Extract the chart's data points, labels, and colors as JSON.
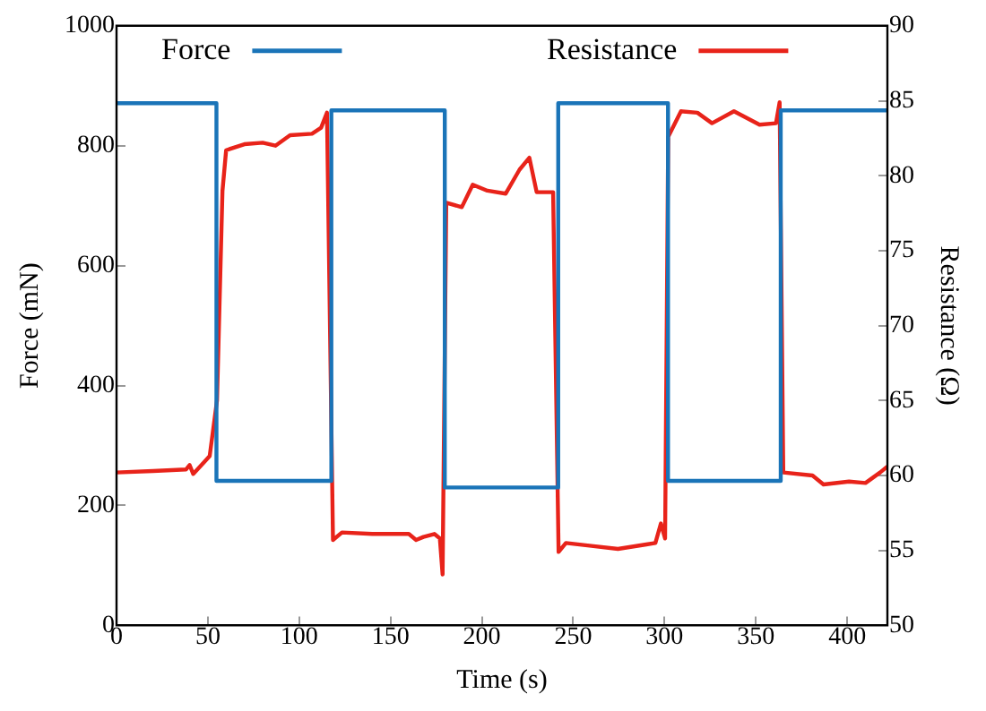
{
  "chart_data": {
    "type": "line",
    "xlabel": "Time (s)",
    "ylabel": "Force (mN)",
    "y2label": "Resistance (Ω)",
    "xlim": [
      0,
      422
    ],
    "xticks": [
      0,
      50,
      100,
      150,
      200,
      250,
      300,
      350,
      400
    ],
    "ylim": [
      0,
      1000
    ],
    "yticks": [
      0,
      200,
      400,
      600,
      800,
      1000
    ],
    "y2lim": [
      50,
      90
    ],
    "y2ticks": [
      50,
      55,
      60,
      65,
      70,
      75,
      80,
      85,
      90
    ],
    "grid": false,
    "legend": "top",
    "marker": "none",
    "line_style": "solid",
    "series": [
      {
        "name": "Force",
        "color": "#1a74b8",
        "type": "step",
        "x": [
          0,
          54.7,
          54.7,
          117.6,
          117.6,
          179.7,
          179.7,
          241.8,
          241.8,
          301.9,
          301.9,
          363.6,
          363.6,
          422
        ],
        "values": [
          871,
          871,
          241,
          241,
          859,
          859,
          230,
          230,
          871,
          871,
          241,
          241,
          859,
          859
        ]
      },
      {
        "name": "Resistance",
        "color": "#e8231a",
        "axis": "y2",
        "x": [
          0,
          20,
          38,
          40,
          42,
          48,
          51,
          55,
          58,
          60,
          70,
          80,
          87,
          95,
          107,
          112,
          115.2,
          118.5,
          123.4,
          140,
          160,
          164,
          168,
          174,
          177,
          178.5,
          180.5,
          189,
          195,
          203,
          213,
          220.6,
          226,
          230,
          239,
          242,
          246,
          260,
          274.5,
          290,
          295,
          298,
          300.3,
          302,
          309,
          318,
          326,
          338,
          352,
          361,
          363,
          365,
          381,
          387,
          401,
          410,
          418,
          422
        ],
        "values": [
          60.2,
          60.3,
          60.4,
          60.7,
          60.1,
          60.9,
          61.3,
          65,
          79,
          81.7,
          82.1,
          82.2,
          82,
          82.7,
          82.8,
          83.2,
          84.2,
          55.7,
          56.2,
          56.1,
          56.1,
          55.7,
          55.9,
          56.1,
          55.8,
          53.4,
          78.2,
          77.9,
          79.4,
          79,
          78.8,
          80.4,
          81.2,
          78.9,
          78.9,
          54.9,
          55.5,
          55.3,
          55.1,
          55.4,
          55.5,
          56.8,
          55.8,
          82.6,
          84.3,
          84.2,
          83.5,
          84.3,
          83.4,
          83.5,
          84.9,
          60.2,
          60,
          59.4,
          59.6,
          59.5,
          60.2,
          60.6
        ]
      }
    ]
  }
}
